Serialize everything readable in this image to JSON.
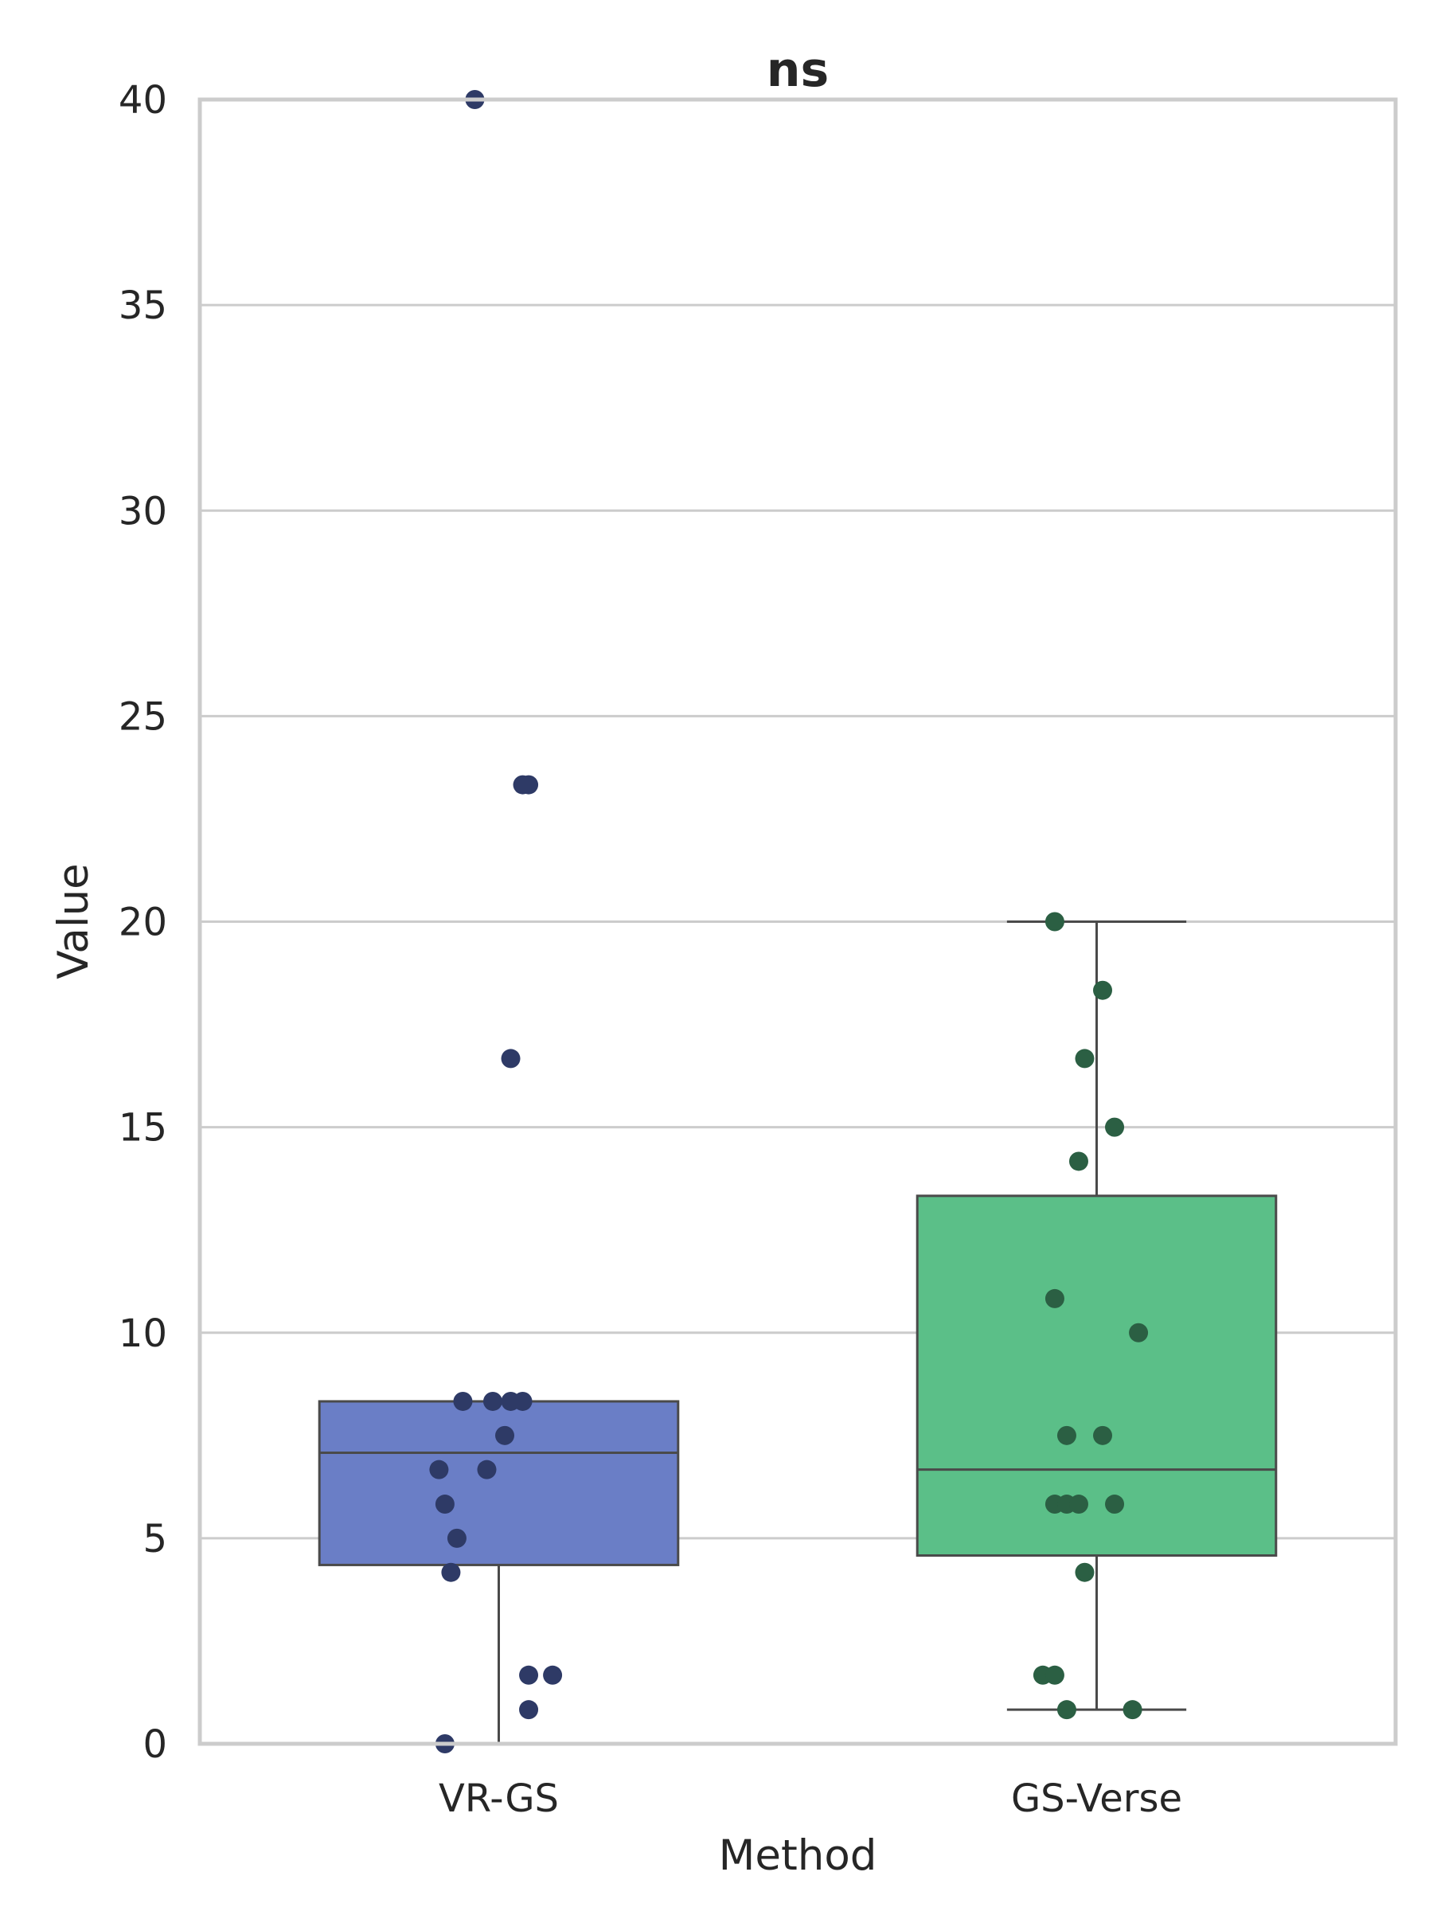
{
  "chart_data": {
    "type": "box",
    "title": "ns",
    "xlabel": "Method",
    "ylabel": "Value",
    "ylim": [
      0,
      40
    ],
    "yticks": [
      0,
      5,
      10,
      15,
      20,
      25,
      30,
      35,
      40
    ],
    "grid": "horizontal",
    "categories": [
      "VR-GS",
      "GS-Verse"
    ],
    "boxes": [
      {
        "category": "VR-GS",
        "q1": 4.35,
        "median": 7.08,
        "q3": 8.33,
        "whisker_low": 0.0,
        "whisker_high": 8.33,
        "color": "#6a7ec6",
        "point_color": "#2e3a66",
        "points": [
          {
            "y": 40.0,
            "jitter": -0.04
          },
          {
            "y": 23.33,
            "jitter": 0.04
          },
          {
            "y": 23.33,
            "jitter": 0.05
          },
          {
            "y": 16.67,
            "jitter": 0.02
          },
          {
            "y": 8.33,
            "jitter": -0.06
          },
          {
            "y": 8.33,
            "jitter": -0.01
          },
          {
            "y": 8.33,
            "jitter": 0.02
          },
          {
            "y": 8.33,
            "jitter": 0.04
          },
          {
            "y": 7.5,
            "jitter": 0.01
          },
          {
            "y": 6.67,
            "jitter": -0.1
          },
          {
            "y": 6.67,
            "jitter": -0.02
          },
          {
            "y": 5.83,
            "jitter": -0.09
          },
          {
            "y": 5.0,
            "jitter": -0.07
          },
          {
            "y": 4.17,
            "jitter": -0.08
          },
          {
            "y": 1.67,
            "jitter": 0.05
          },
          {
            "y": 1.67,
            "jitter": 0.09
          },
          {
            "y": 0.83,
            "jitter": 0.05
          },
          {
            "y": 0.0,
            "jitter": -0.09
          }
        ]
      },
      {
        "category": "GS-Verse",
        "q1": 4.58,
        "median": 6.67,
        "q3": 13.33,
        "whisker_low": 0.83,
        "whisker_high": 20.0,
        "color": "#5bbf88",
        "point_color": "#2b5f43",
        "points": [
          {
            "y": 20.0,
            "jitter": -0.07
          },
          {
            "y": 18.33,
            "jitter": 0.01
          },
          {
            "y": 16.67,
            "jitter": -0.02
          },
          {
            "y": 15.0,
            "jitter": 0.03
          },
          {
            "y": 14.17,
            "jitter": -0.03
          },
          {
            "y": 10.83,
            "jitter": -0.07
          },
          {
            "y": 10.0,
            "jitter": 0.07
          },
          {
            "y": 7.5,
            "jitter": -0.05
          },
          {
            "y": 7.5,
            "jitter": 0.01
          },
          {
            "y": 5.83,
            "jitter": -0.07
          },
          {
            "y": 5.83,
            "jitter": -0.05
          },
          {
            "y": 5.83,
            "jitter": -0.03
          },
          {
            "y": 5.83,
            "jitter": 0.03
          },
          {
            "y": 4.17,
            "jitter": -0.02
          },
          {
            "y": 1.67,
            "jitter": -0.09
          },
          {
            "y": 1.67,
            "jitter": -0.07
          },
          {
            "y": 0.83,
            "jitter": -0.05
          },
          {
            "y": 0.83,
            "jitter": 0.06
          }
        ]
      }
    ]
  }
}
